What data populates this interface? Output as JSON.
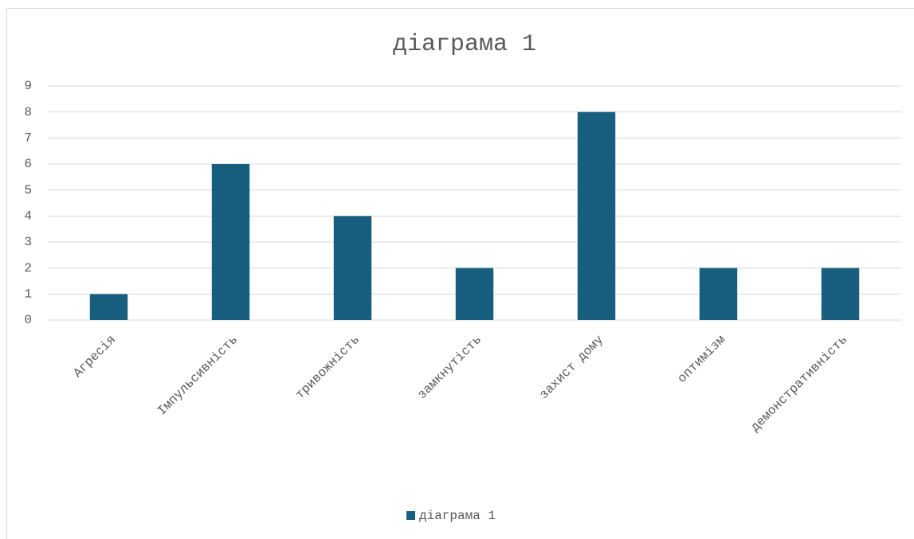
{
  "chart_data": {
    "type": "bar",
    "title": "діаграма 1",
    "categories": [
      "Агресія",
      "Імпульсивність",
      "тривожність",
      "замкнутість",
      "захист дому",
      "оптимізм",
      "демонстративність"
    ],
    "series": [
      {
        "name": "діаграма 1",
        "color": "#175e7f",
        "values": [
          1,
          6,
          4,
          2,
          8,
          2,
          2
        ]
      }
    ],
    "ylim": [
      0,
      9
    ],
    "yticks": [
      0,
      1,
      2,
      3,
      4,
      5,
      6,
      7,
      8,
      9
    ],
    "grid": true,
    "legend": "bottom"
  }
}
